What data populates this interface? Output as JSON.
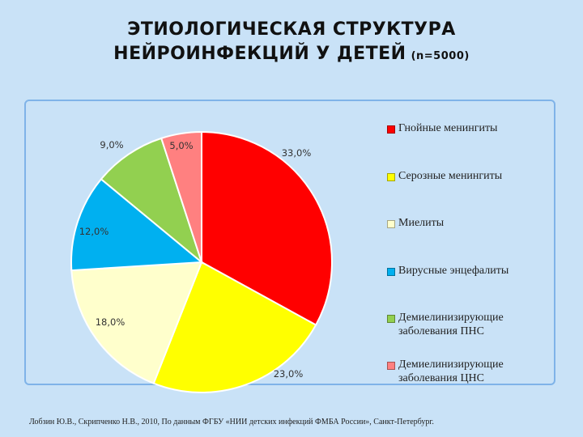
{
  "title": {
    "line1": "ЭТИОЛОГИЧЕСКАЯ СТРУКТУРА",
    "line2": "НЕЙРОИНФЕКЦИЙ У ДЕТЕЙ",
    "sample": "(n=5000)"
  },
  "source_note": "Лобзин Ю.В., Скрипченко Н.В., 2010, По данным ФГБУ «НИИ детских инфекций ФМБА России», Санкт-Петербург.",
  "chart_data": {
    "type": "pie",
    "title": "ЭТИОЛОГИЧЕСКАЯ СТРУКТУРА НЕЙРОИНФЕКЦИЙ У ДЕТЕЙ (n=5000)",
    "legend_position": "right",
    "slices": [
      {
        "label": "Гнойные менингиты",
        "value": 33.0,
        "display": "33,0%",
        "color": "#ff0000"
      },
      {
        "label": "Серозные менингиты",
        "value": 23.0,
        "display": "23,0%",
        "color": "#ffff00"
      },
      {
        "label": "Миелиты",
        "value": 18.0,
        "display": "18,0%",
        "color": "#ffffcc"
      },
      {
        "label": "Вирусные энцефалиты",
        "value": 12.0,
        "display": "12,0%",
        "color": "#00b0f0"
      },
      {
        "label": "Демиелинизирующие\nзаболевания ПНС",
        "value": 9.0,
        "display": "9,0%",
        "color": "#92d050"
      },
      {
        "label": "Демиелинизирующие\nзаболевания ЦНС",
        "value": 5.0,
        "display": "5,0%",
        "color": "#ff8080"
      }
    ]
  }
}
